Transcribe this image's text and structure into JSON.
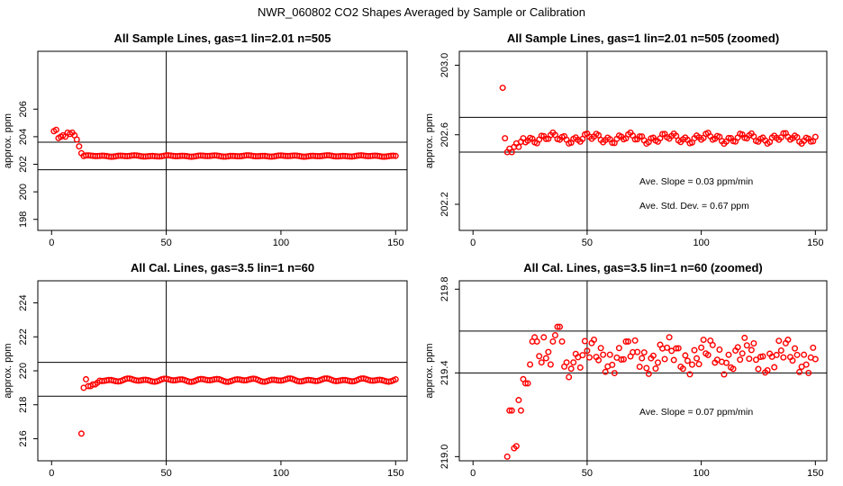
{
  "figure": {
    "title": "NWR_060802  CO2 Shapes Averaged by Sample or Calibration"
  },
  "chart_data": [
    {
      "type": "scatter",
      "title": "All Sample Lines, gas=1 lin=2.01 n=505",
      "xlabel": "",
      "ylabel": "approx. ppm",
      "xlim": [
        -6,
        155
      ],
      "ylim": [
        197.2,
        210.2
      ],
      "x_ticks": [
        0,
        50,
        100,
        150
      ],
      "y_ticks": [
        198,
        200,
        202,
        204,
        206
      ],
      "hlines": [
        201.6,
        203.6
      ],
      "vlines": [
        50
      ],
      "marker_color": "#ff0000",
      "segments": [
        {
          "x": [
            1,
            2,
            3,
            4,
            5,
            6,
            7,
            8,
            9,
            10,
            11,
            12,
            13,
            14
          ],
          "y": [
            204.4,
            204.5,
            203.9,
            204.0,
            204.1,
            204.0,
            204.3,
            204.2,
            204.3,
            204.1,
            203.8,
            203.3,
            202.8,
            202.6
          ]
        },
        {
          "x_start": 15,
          "x_end": 150,
          "base": 202.6,
          "amp": 0.04,
          "freq": 0.9
        }
      ],
      "annotations": []
    },
    {
      "type": "scatter",
      "title": "All Sample Lines, gas=1 lin=2.01 n=505 (zoomed)",
      "xlabel": "",
      "ylabel": "approx. ppm",
      "xlim": [
        -6,
        155
      ],
      "ylim": [
        202.05,
        203.08
      ],
      "x_ticks": [
        0,
        50,
        100,
        150
      ],
      "y_ticks": [
        202.2,
        202.6,
        203.0
      ],
      "hlines": [
        202.5,
        202.7
      ],
      "vlines": [
        50
      ],
      "marker_color": "#ff0000",
      "segments": [
        {
          "x": [
            13,
            14,
            15,
            16,
            17,
            18,
            19,
            20,
            21,
            22
          ],
          "y": [
            202.87,
            202.58,
            202.5,
            202.52,
            202.5,
            202.53,
            202.55,
            202.53,
            202.56,
            202.58
          ]
        },
        {
          "x_start": 23,
          "x_end": 150,
          "base": 202.58,
          "amp": 0.025,
          "freq": 1.3
        }
      ],
      "annotations": [
        "Ave. Slope =  0.03  ppm/min",
        "Ave. Std. Dev. =  0.67  ppm"
      ]
    },
    {
      "type": "scatter",
      "title": "All Cal. Lines, gas=3.5 lin=1 n=60",
      "xlabel": "",
      "ylabel": "approx. ppm",
      "xlim": [
        -6,
        155
      ],
      "ylim": [
        214.7,
        225.3
      ],
      "x_ticks": [
        0,
        50,
        100,
        150
      ],
      "y_ticks": [
        216,
        218,
        220,
        222,
        224
      ],
      "hlines": [
        218.5,
        220.5
      ],
      "vlines": [
        50
      ],
      "marker_color": "#ff0000",
      "segments": [
        {
          "x": [
            13,
            14,
            15,
            16,
            17,
            18,
            19,
            20
          ],
          "y": [
            216.3,
            219.0,
            219.5,
            219.1,
            219.1,
            219.2,
            219.2,
            219.3
          ]
        },
        {
          "x_start": 21,
          "x_end": 150,
          "base": 219.45,
          "amp": 0.08,
          "freq": 0.8
        }
      ],
      "annotations": []
    },
    {
      "type": "scatter",
      "title": "All Cal. Lines, gas=3.5 lin=1 n=60 (zoomed)",
      "xlabel": "",
      "ylabel": "approx. ppm",
      "xlim": [
        -6,
        155
      ],
      "ylim": [
        218.98,
        219.84
      ],
      "x_ticks": [
        0,
        50,
        100,
        150
      ],
      "y_ticks": [
        219.0,
        219.4,
        219.8
      ],
      "hlines": [
        219.4,
        219.6
      ],
      "vlines": [
        50
      ],
      "marker_color": "#ff0000",
      "segments": [
        {
          "x": [
            15,
            16,
            17,
            18,
            19,
            20,
            21,
            22,
            23,
            24,
            25,
            26,
            27,
            28,
            29,
            30,
            31,
            32,
            33,
            34,
            35,
            36,
            37,
            38,
            39,
            40,
            41,
            42,
            43,
            44
          ],
          "y": [
            219.0,
            219.22,
            219.22,
            219.04,
            219.05,
            219.27,
            219.22,
            219.37,
            219.35,
            219.35,
            219.44,
            219.55,
            219.57,
            219.55,
            219.48,
            219.45,
            219.57,
            219.47,
            219.5,
            219.44,
            219.55,
            219.58,
            219.62,
            219.62,
            219.55,
            219.43,
            219.45,
            219.38,
            219.42,
            219.45
          ]
        },
        {
          "x_start": 45,
          "x_end": 150,
          "base": 219.48,
          "amp": 0.07,
          "freq": 1.7
        }
      ],
      "annotations": [
        "Ave. Slope =  0.07  ppm/min"
      ]
    }
  ]
}
